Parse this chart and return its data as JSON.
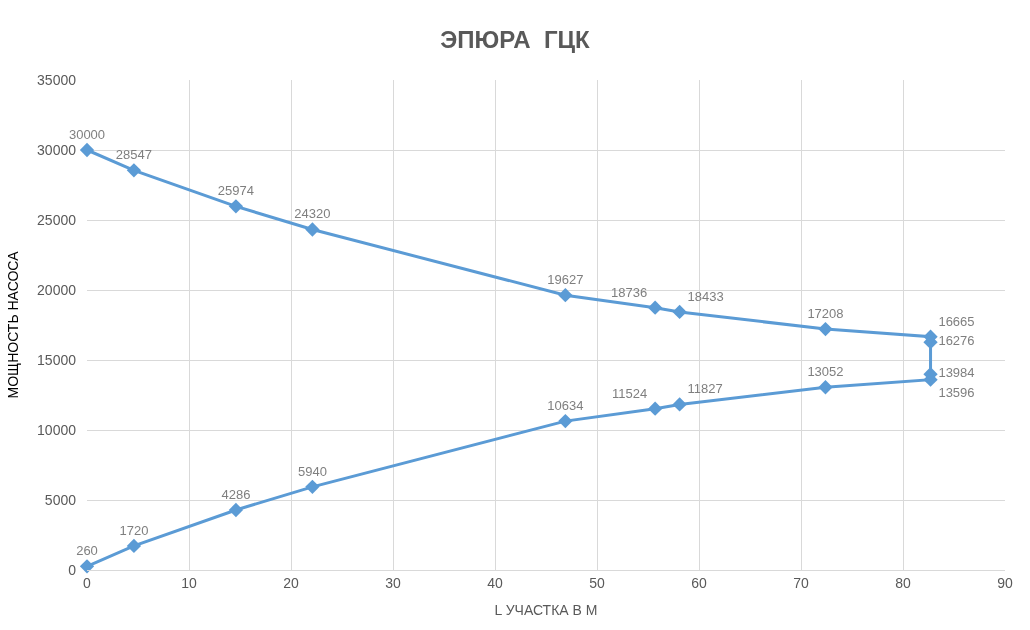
{
  "chart_data": {
    "type": "line",
    "title": "ЭПЮРА  ГЦК",
    "xlabel": "L УЧАСТКА В М",
    "ylabel": "МОЩНОСТЬ НАСОСА",
    "series": [
      {
        "color": "#5b9bd5",
        "x": [
          0,
          4.6,
          14.6,
          22.1,
          46.9,
          55.7,
          58.1,
          72.4,
          82.7,
          82.7,
          82.7,
          82.7,
          72.4,
          58.1,
          55.7,
          46.9,
          22.1,
          14.6,
          4.6,
          0
        ],
        "values": [
          260,
          1720,
          4286,
          5940,
          10634,
          11524,
          11827,
          13052,
          13596,
          13984,
          16276,
          16665,
          17208,
          18433,
          18736,
          19627,
          24320,
          25974,
          28547,
          30000
        ]
      }
    ],
    "xlim": [
      0,
      90
    ],
    "xticks": [
      0,
      10,
      20,
      30,
      40,
      50,
      60,
      70,
      80,
      90
    ],
    "ylim": [
      0,
      35000
    ],
    "yticks": [
      0,
      5000,
      10000,
      15000,
      20000,
      25000,
      30000,
      35000
    ],
    "grid": true,
    "marker": "diamond",
    "line_style": "solid",
    "data_labels": true
  }
}
